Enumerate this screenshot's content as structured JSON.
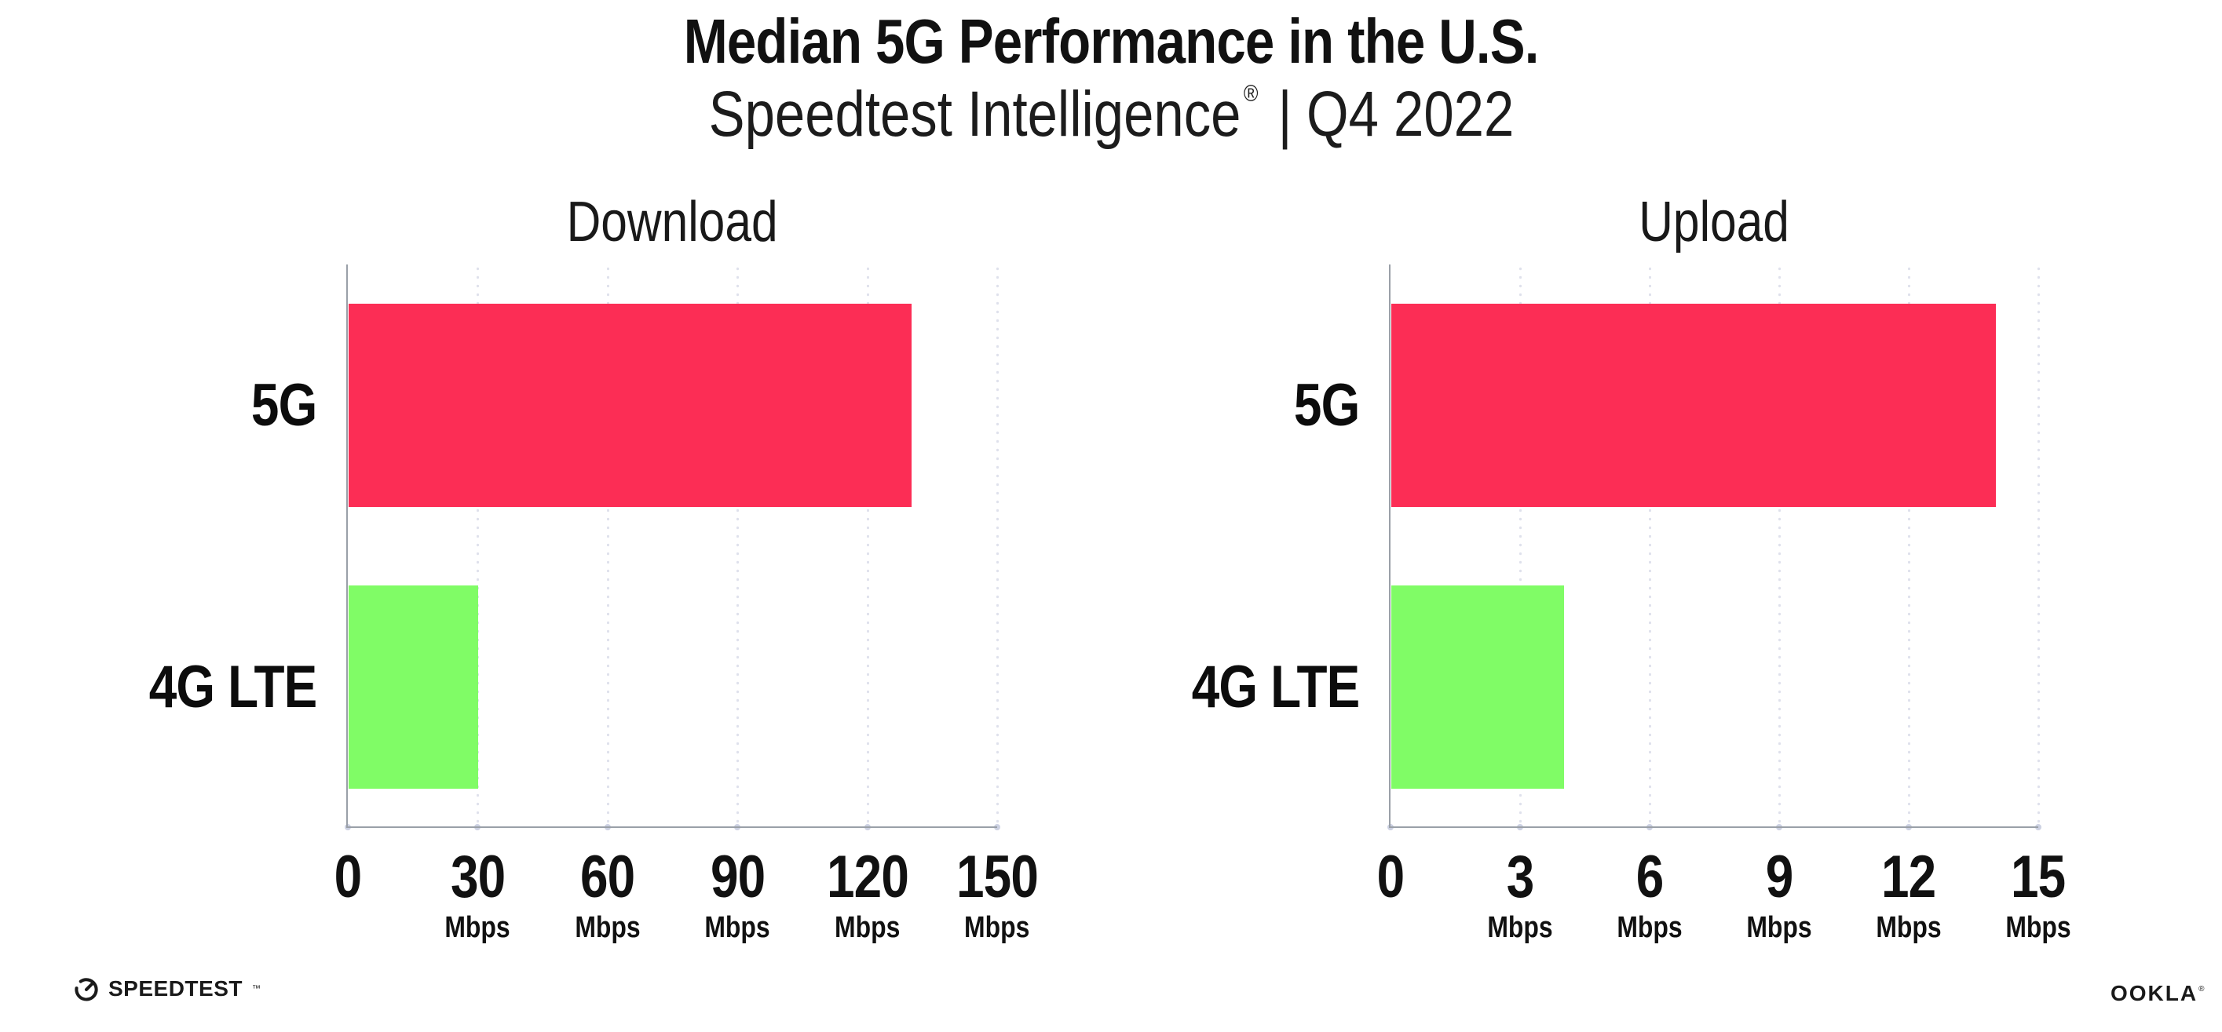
{
  "header": {
    "title": "Median 5G Performance in the U.S.",
    "subtitle_brand": "Speedtest Intelligence",
    "subtitle_reg": "®",
    "subtitle_sep": "|",
    "subtitle_period": "Q4 2022"
  },
  "chart_data": [
    {
      "type": "bar",
      "orientation": "horizontal",
      "title": "Download",
      "categories": [
        "5G",
        "4G LTE"
      ],
      "values": [
        130,
        30
      ],
      "unit": "Mbps",
      "xlim": [
        0,
        150
      ],
      "xticks": [
        0,
        30,
        60,
        90,
        120,
        150
      ],
      "bar_colors": [
        "#fc2d55",
        "#80fc66"
      ],
      "grid": "vertical-dotted",
      "legend": "none"
    },
    {
      "type": "bar",
      "orientation": "horizontal",
      "title": "Upload",
      "categories": [
        "5G",
        "4G LTE"
      ],
      "values": [
        14,
        4
      ],
      "unit": "Mbps",
      "xlim": [
        0,
        15
      ],
      "xticks": [
        0,
        3,
        6,
        9,
        12,
        15
      ],
      "bar_colors": [
        "#fc2d55",
        "#80fc66"
      ],
      "grid": "vertical-dotted",
      "legend": "none"
    }
  ],
  "footer": {
    "speedtest_label": "SPEEDTEST",
    "speedtest_tm": "™",
    "ookla_label": "OOKLA",
    "ookla_reg": "®"
  },
  "colors": {
    "bar_5g": "#fc2d55",
    "bar_4g_lte": "#80fc66",
    "axis": "#9aa0a8",
    "grid_dots": "#dfe1ec",
    "text": "#111111",
    "background": "#ffffff"
  }
}
